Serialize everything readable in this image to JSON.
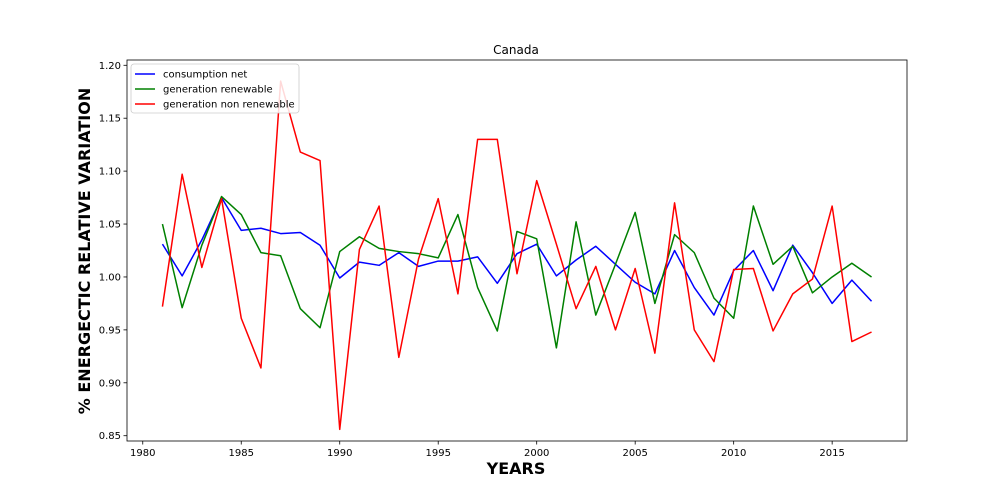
{
  "chart_data": {
    "type": "line",
    "title": "Canada",
    "xlabel": "YEARS",
    "ylabel": "% ENERGECTIC RELATIVE VARIATION",
    "xlim": [
      1979.2,
      2018.8
    ],
    "ylim": [
      0.845,
      1.205
    ],
    "xticks": [
      1980,
      1985,
      1990,
      1995,
      2000,
      2005,
      2010,
      2015
    ],
    "yticks": [
      0.85,
      0.9,
      0.95,
      1.0,
      1.05,
      1.1,
      1.15,
      1.2
    ],
    "xtick_labels": [
      "1980",
      "1985",
      "1990",
      "1995",
      "2000",
      "2005",
      "2010",
      "2015"
    ],
    "ytick_labels": [
      "0.85",
      "0.90",
      "0.95",
      "1.00",
      "1.05",
      "1.10",
      "1.15",
      "1.20"
    ],
    "grid": false,
    "legend_position": "top-left",
    "x": [
      1981,
      1982,
      1983,
      1984,
      1985,
      1986,
      1987,
      1988,
      1989,
      1990,
      1991,
      1992,
      1993,
      1994,
      1995,
      1996,
      1997,
      1998,
      1999,
      2000,
      2001,
      2002,
      2003,
      2004,
      2005,
      2006,
      2007,
      2008,
      2009,
      2010,
      2011,
      2012,
      2013,
      2014,
      2015,
      2016,
      2017
    ],
    "series": [
      {
        "name": "consumption net",
        "color": "#0000ff",
        "values": [
          1.031,
          1.001,
          1.035,
          1.075,
          1.044,
          1.046,
          1.041,
          1.042,
          1.03,
          0.999,
          1.014,
          1.011,
          1.023,
          1.01,
          1.015,
          1.015,
          1.019,
          0.994,
          1.022,
          1.031,
          1.001,
          1.016,
          1.029,
          1.012,
          0.995,
          0.984,
          1.025,
          0.99,
          0.964,
          1.006,
          1.025,
          0.987,
          1.03,
          1.004,
          0.975,
          0.997,
          0.977
        ]
      },
      {
        "name": "generation renewable",
        "color": "#008000",
        "values": [
          1.05,
          0.971,
          1.03,
          1.076,
          1.059,
          1.023,
          1.02,
          0.97,
          0.952,
          1.024,
          1.038,
          1.027,
          1.024,
          1.022,
          1.018,
          1.059,
          0.99,
          0.949,
          1.043,
          1.036,
          0.933,
          1.052,
          0.964,
          1.012,
          1.061,
          0.975,
          1.04,
          1.023,
          0.98,
          0.961,
          1.067,
          1.012,
          1.029,
          0.985,
          1.0,
          1.013,
          1.0
        ]
      },
      {
        "name": "generation non renewable",
        "color": "#ff0000",
        "values": [
          0.972,
          1.097,
          1.009,
          1.074,
          0.961,
          0.914,
          1.185,
          1.118,
          1.11,
          0.856,
          1.026,
          1.067,
          0.924,
          1.017,
          1.074,
          0.984,
          1.13,
          1.13,
          1.003,
          1.091,
          1.031,
          0.97,
          1.01,
          0.95,
          1.008,
          0.928,
          1.07,
          0.95,
          0.92,
          1.007,
          1.008,
          0.949,
          0.984,
          0.998,
          1.067,
          0.939,
          0.948
        ]
      }
    ]
  }
}
